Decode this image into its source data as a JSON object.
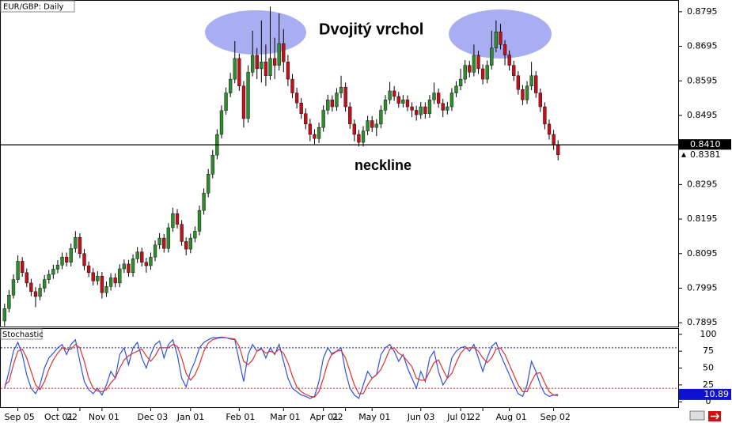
{
  "chart_data": {
    "type": "candlestick",
    "title": "EUR/GBP: Daily",
    "categories": [
      null,
      null,
      null,
      "Sep 05",
      null,
      null,
      null,
      null,
      null,
      null,
      null,
      null,
      "Oct 01",
      null,
      null,
      null,
      null,
      "22",
      null,
      null,
      null,
      null,
      "Nov 01",
      null,
      null,
      null,
      null,
      null,
      null,
      null,
      null,
      null,
      null,
      "Dec 03",
      null,
      null,
      null,
      null,
      null,
      null,
      null,
      null,
      "Jan 01",
      null,
      null,
      null,
      null,
      null,
      null,
      null,
      null,
      null,
      null,
      "Feb 01",
      null,
      null,
      null,
      null,
      null,
      null,
      null,
      null,
      null,
      "Mar 01",
      null,
      null,
      null,
      null,
      null,
      null,
      null,
      null,
      "Apr 01",
      null,
      null,
      null,
      null,
      "22",
      null,
      null,
      null,
      null,
      null,
      "May 01",
      null,
      null,
      null,
      null,
      null,
      null,
      null,
      null,
      null,
      null,
      "Jun 03",
      null,
      null,
      null,
      null,
      null,
      null,
      null,
      null,
      "Jul 01",
      null,
      null,
      null,
      null,
      "22",
      null,
      null,
      null,
      null,
      null,
      "Aug 01",
      null,
      null,
      null,
      null,
      null,
      null,
      null,
      null,
      null,
      "Sep 02",
      null
    ],
    "open": [
      0.79,
      0.7936,
      0.7975,
      0.802,
      0.8073,
      0.804,
      0.801,
      0.7985,
      0.7971,
      0.7995,
      0.802,
      0.8035,
      0.805,
      0.8062,
      0.8085,
      0.807,
      0.811,
      0.8142,
      0.8095,
      0.806,
      0.804,
      0.8016,
      0.803,
      0.7982,
      0.8,
      0.8025,
      0.801,
      0.8051,
      0.8065,
      0.804,
      0.808,
      0.81,
      0.807,
      0.806,
      0.8085,
      0.812,
      0.814,
      0.811,
      0.817,
      0.8211,
      0.818,
      0.813,
      0.8108,
      0.814,
      0.816,
      0.822,
      0.827,
      0.8325,
      0.838,
      0.844,
      0.8509,
      0.856,
      0.86,
      0.866,
      0.858,
      0.8486,
      0.862,
      0.8669,
      0.863,
      0.865,
      0.861,
      0.866,
      0.864,
      0.8703,
      0.865,
      0.86,
      0.856,
      0.8531,
      0.85,
      0.847,
      0.844,
      0.8428,
      0.846,
      0.851,
      0.854,
      0.852,
      0.856,
      0.8577,
      0.852,
      0.847,
      0.844,
      0.8417,
      0.845,
      0.848,
      0.846,
      0.847,
      0.851,
      0.854,
      0.8566,
      0.855,
      0.853,
      0.854,
      0.852,
      0.851,
      0.8497,
      0.852,
      0.85,
      0.854,
      0.856,
      0.853,
      0.851,
      0.852,
      0.856,
      0.858,
      0.86,
      0.864,
      0.862,
      0.8669,
      0.863,
      0.86,
      0.864,
      0.869,
      0.8737,
      0.87,
      0.867,
      0.864,
      0.861,
      0.857,
      0.854,
      0.858,
      0.861,
      0.856,
      0.852,
      0.847,
      0.844,
      0.841
    ],
    "high": [
      0.795,
      0.799,
      0.8035,
      0.809,
      0.8085,
      0.8052,
      0.8022,
      0.7998,
      0.8008,
      0.8033,
      0.8048,
      0.8063,
      0.8076,
      0.8098,
      0.8098,
      0.8124,
      0.816,
      0.8154,
      0.8108,
      0.8072,
      0.8053,
      0.8044,
      0.8042,
      0.8014,
      0.8038,
      0.8038,
      0.8064,
      0.8078,
      0.8077,
      0.8093,
      0.8114,
      0.8112,
      0.8083,
      0.8098,
      0.8133,
      0.8154,
      0.8152,
      0.8183,
      0.8228,
      0.8224,
      0.8192,
      0.8142,
      0.8153,
      0.8174,
      0.8234,
      0.8284,
      0.834,
      0.8395,
      0.8455,
      0.8524,
      0.8576,
      0.8618,
      0.871,
      0.8674,
      0.8594,
      0.864,
      0.874,
      0.869,
      0.877,
      0.87,
      0.881,
      0.872,
      0.879,
      0.8745,
      0.867,
      0.8615,
      0.8575,
      0.8545,
      0.8515,
      0.8485,
      0.8455,
      0.8474,
      0.8524,
      0.8555,
      0.8553,
      0.8574,
      0.861,
      0.859,
      0.8533,
      0.8483,
      0.8453,
      0.8464,
      0.8494,
      0.8493,
      0.8484,
      0.8524,
      0.8554,
      0.8592,
      0.858,
      0.8563,
      0.8554,
      0.8553,
      0.8533,
      0.8523,
      0.8534,
      0.8533,
      0.8554,
      0.859,
      0.8573,
      0.8543,
      0.8534,
      0.8574,
      0.8594,
      0.863,
      0.8655,
      0.8653,
      0.87,
      0.8682,
      0.8643,
      0.8654,
      0.874,
      0.877,
      0.876,
      0.8713,
      0.8683,
      0.8653,
      0.8623,
      0.8583,
      0.8594,
      0.865,
      0.8623,
      0.8573,
      0.8533,
      0.8483,
      0.8453,
      0.8423
    ],
    "low": [
      0.7885,
      0.7925,
      0.7965,
      0.801,
      0.8028,
      0.7998,
      0.7972,
      0.794,
      0.796,
      0.7983,
      0.8008,
      0.8022,
      0.8038,
      0.805,
      0.8058,
      0.8058,
      0.8098,
      0.8082,
      0.8047,
      0.8027,
      0.8003,
      0.8004,
      0.7965,
      0.797,
      0.7988,
      0.7998,
      0.7998,
      0.8039,
      0.8028,
      0.8028,
      0.8068,
      0.8058,
      0.804,
      0.8048,
      0.8073,
      0.8108,
      0.8098,
      0.8098,
      0.8158,
      0.8168,
      0.8118,
      0.809,
      0.8096,
      0.8128,
      0.8148,
      0.8208,
      0.8258,
      0.8313,
      0.8368,
      0.8428,
      0.8497,
      0.8548,
      0.8588,
      0.8566,
      0.846,
      0.8474,
      0.8608,
      0.86,
      0.859,
      0.858,
      0.8598,
      0.86,
      0.8625,
      0.862,
      0.858,
      0.8545,
      0.8515,
      0.8485,
      0.8455,
      0.842,
      0.8412,
      0.8415,
      0.8448,
      0.8498,
      0.8506,
      0.8508,
      0.8545,
      0.8506,
      0.8456,
      0.842,
      0.8405,
      0.8405,
      0.8438,
      0.8447,
      0.8435,
      0.8458,
      0.8498,
      0.8528,
      0.8537,
      0.8517,
      0.8518,
      0.8507,
      0.849,
      0.848,
      0.8485,
      0.8486,
      0.8488,
      0.8528,
      0.8517,
      0.849,
      0.8498,
      0.8508,
      0.8548,
      0.8568,
      0.8588,
      0.8605,
      0.8608,
      0.8615,
      0.8585,
      0.8588,
      0.8628,
      0.8678,
      0.8686,
      0.864,
      0.8625,
      0.8595,
      0.8555,
      0.8525,
      0.8528,
      0.8568,
      0.8546,
      0.8505,
      0.8455,
      0.8425,
      0.8395,
      0.8365
    ],
    "close": [
      0.7936,
      0.7975,
      0.802,
      0.8073,
      0.804,
      0.801,
      0.7985,
      0.7971,
      0.7995,
      0.802,
      0.8035,
      0.805,
      0.8062,
      0.8085,
      0.807,
      0.811,
      0.8142,
      0.8095,
      0.806,
      0.804,
      0.8016,
      0.803,
      0.7982,
      0.8,
      0.8025,
      0.801,
      0.8051,
      0.8065,
      0.804,
      0.808,
      0.81,
      0.807,
      0.806,
      0.8085,
      0.812,
      0.814,
      0.811,
      0.817,
      0.8211,
      0.818,
      0.813,
      0.8108,
      0.814,
      0.816,
      0.822,
      0.827,
      0.8325,
      0.838,
      0.844,
      0.8509,
      0.856,
      0.86,
      0.866,
      0.858,
      0.8486,
      0.862,
      0.8669,
      0.863,
      0.865,
      0.861,
      0.866,
      0.864,
      0.8703,
      0.865,
      0.86,
      0.856,
      0.8531,
      0.85,
      0.847,
      0.844,
      0.8428,
      0.846,
      0.851,
      0.854,
      0.852,
      0.856,
      0.8577,
      0.852,
      0.847,
      0.844,
      0.8417,
      0.845,
      0.848,
      0.846,
      0.847,
      0.851,
      0.854,
      0.8566,
      0.855,
      0.853,
      0.854,
      0.852,
      0.851,
      0.8497,
      0.852,
      0.85,
      0.854,
      0.856,
      0.853,
      0.851,
      0.852,
      0.856,
      0.858,
      0.86,
      0.864,
      0.862,
      0.8669,
      0.863,
      0.86,
      0.864,
      0.869,
      0.8737,
      0.87,
      0.867,
      0.864,
      0.861,
      0.857,
      0.854,
      0.858,
      0.861,
      0.856,
      0.852,
      0.847,
      0.844,
      0.841,
      0.8381
    ],
    "up_color": "#2e8b2e",
    "down_color": "#c0101a",
    "ylim": [
      0.7884,
      0.8829
    ],
    "yticks": [
      0.8795,
      0.8695,
      0.8595,
      0.8495,
      0.8295,
      0.8195,
      0.8095,
      0.7995,
      0.7895
    ],
    "neckline": {
      "value": 0.841,
      "label": "0.8410",
      "color": "#000000"
    },
    "last_price": 0.8381,
    "annotations": [
      "Dvojitý vrchol",
      "neckline"
    ],
    "indicator": {
      "type": "line",
      "title": "Stochastic",
      "ylim": [
        -8,
        108
      ],
      "yticks": [
        100,
        75,
        50,
        25,
        0
      ],
      "levels": [
        {
          "value": 80,
          "color": "#2020c0"
        },
        {
          "value": 20,
          "color": "#e02020"
        }
      ],
      "last_value": 10.89,
      "series": [
        {
          "color": "#3050e0",
          "values": [
            20,
            45,
            75,
            88,
            70,
            40,
            20,
            12,
            25,
            50,
            65,
            72,
            80,
            85,
            70,
            85,
            92,
            60,
            30,
            18,
            12,
            20,
            10,
            25,
            45,
            35,
            70,
            80,
            55,
            80,
            88,
            65,
            50,
            70,
            85,
            90,
            65,
            85,
            92,
            70,
            35,
            22,
            45,
            60,
            80,
            88,
            92,
            95,
            95,
            96,
            95,
            93,
            92,
            60,
            30,
            70,
            85,
            75,
            80,
            65,
            80,
            70,
            85,
            60,
            35,
            20,
            15,
            10,
            8,
            5,
            8,
            30,
            65,
            80,
            70,
            75,
            80,
            45,
            20,
            10,
            5,
            25,
            45,
            35,
            40,
            70,
            80,
            85,
            75,
            60,
            70,
            50,
            35,
            20,
            45,
            30,
            65,
            75,
            45,
            25,
            35,
            65,
            75,
            80,
            82,
            75,
            85,
            65,
            45,
            65,
            82,
            88,
            70,
            55,
            40,
            25,
            12,
            8,
            25,
            60,
            45,
            25,
            12,
            8,
            10,
            10.89
          ]
        },
        {
          "color": "#e03030",
          "values": [
            25,
            30,
            55,
            75,
            78,
            65,
            45,
            25,
            18,
            30,
            48,
            62,
            72,
            80,
            78,
            78,
            85,
            80,
            60,
            35,
            20,
            16,
            15,
            18,
            28,
            35,
            50,
            62,
            68,
            72,
            75,
            78,
            68,
            60,
            68,
            80,
            80,
            80,
            85,
            82,
            65,
            42,
            32,
            40,
            55,
            75,
            87,
            92,
            94,
            95,
            95,
            94,
            93,
            82,
            60,
            55,
            62,
            75,
            78,
            72,
            75,
            72,
            78,
            72,
            58,
            38,
            22,
            15,
            11,
            8,
            7,
            15,
            35,
            58,
            72,
            75,
            76,
            65,
            45,
            25,
            12,
            12,
            25,
            35,
            40,
            48,
            62,
            78,
            80,
            72,
            68,
            60,
            52,
            35,
            32,
            32,
            45,
            58,
            62,
            48,
            35,
            42,
            58,
            72,
            79,
            80,
            80,
            75,
            65,
            58,
            65,
            78,
            80,
            70,
            55,
            40,
            25,
            15,
            15,
            30,
            42,
            43,
            28,
            15,
            10,
            9
          ]
        }
      ]
    }
  }
}
